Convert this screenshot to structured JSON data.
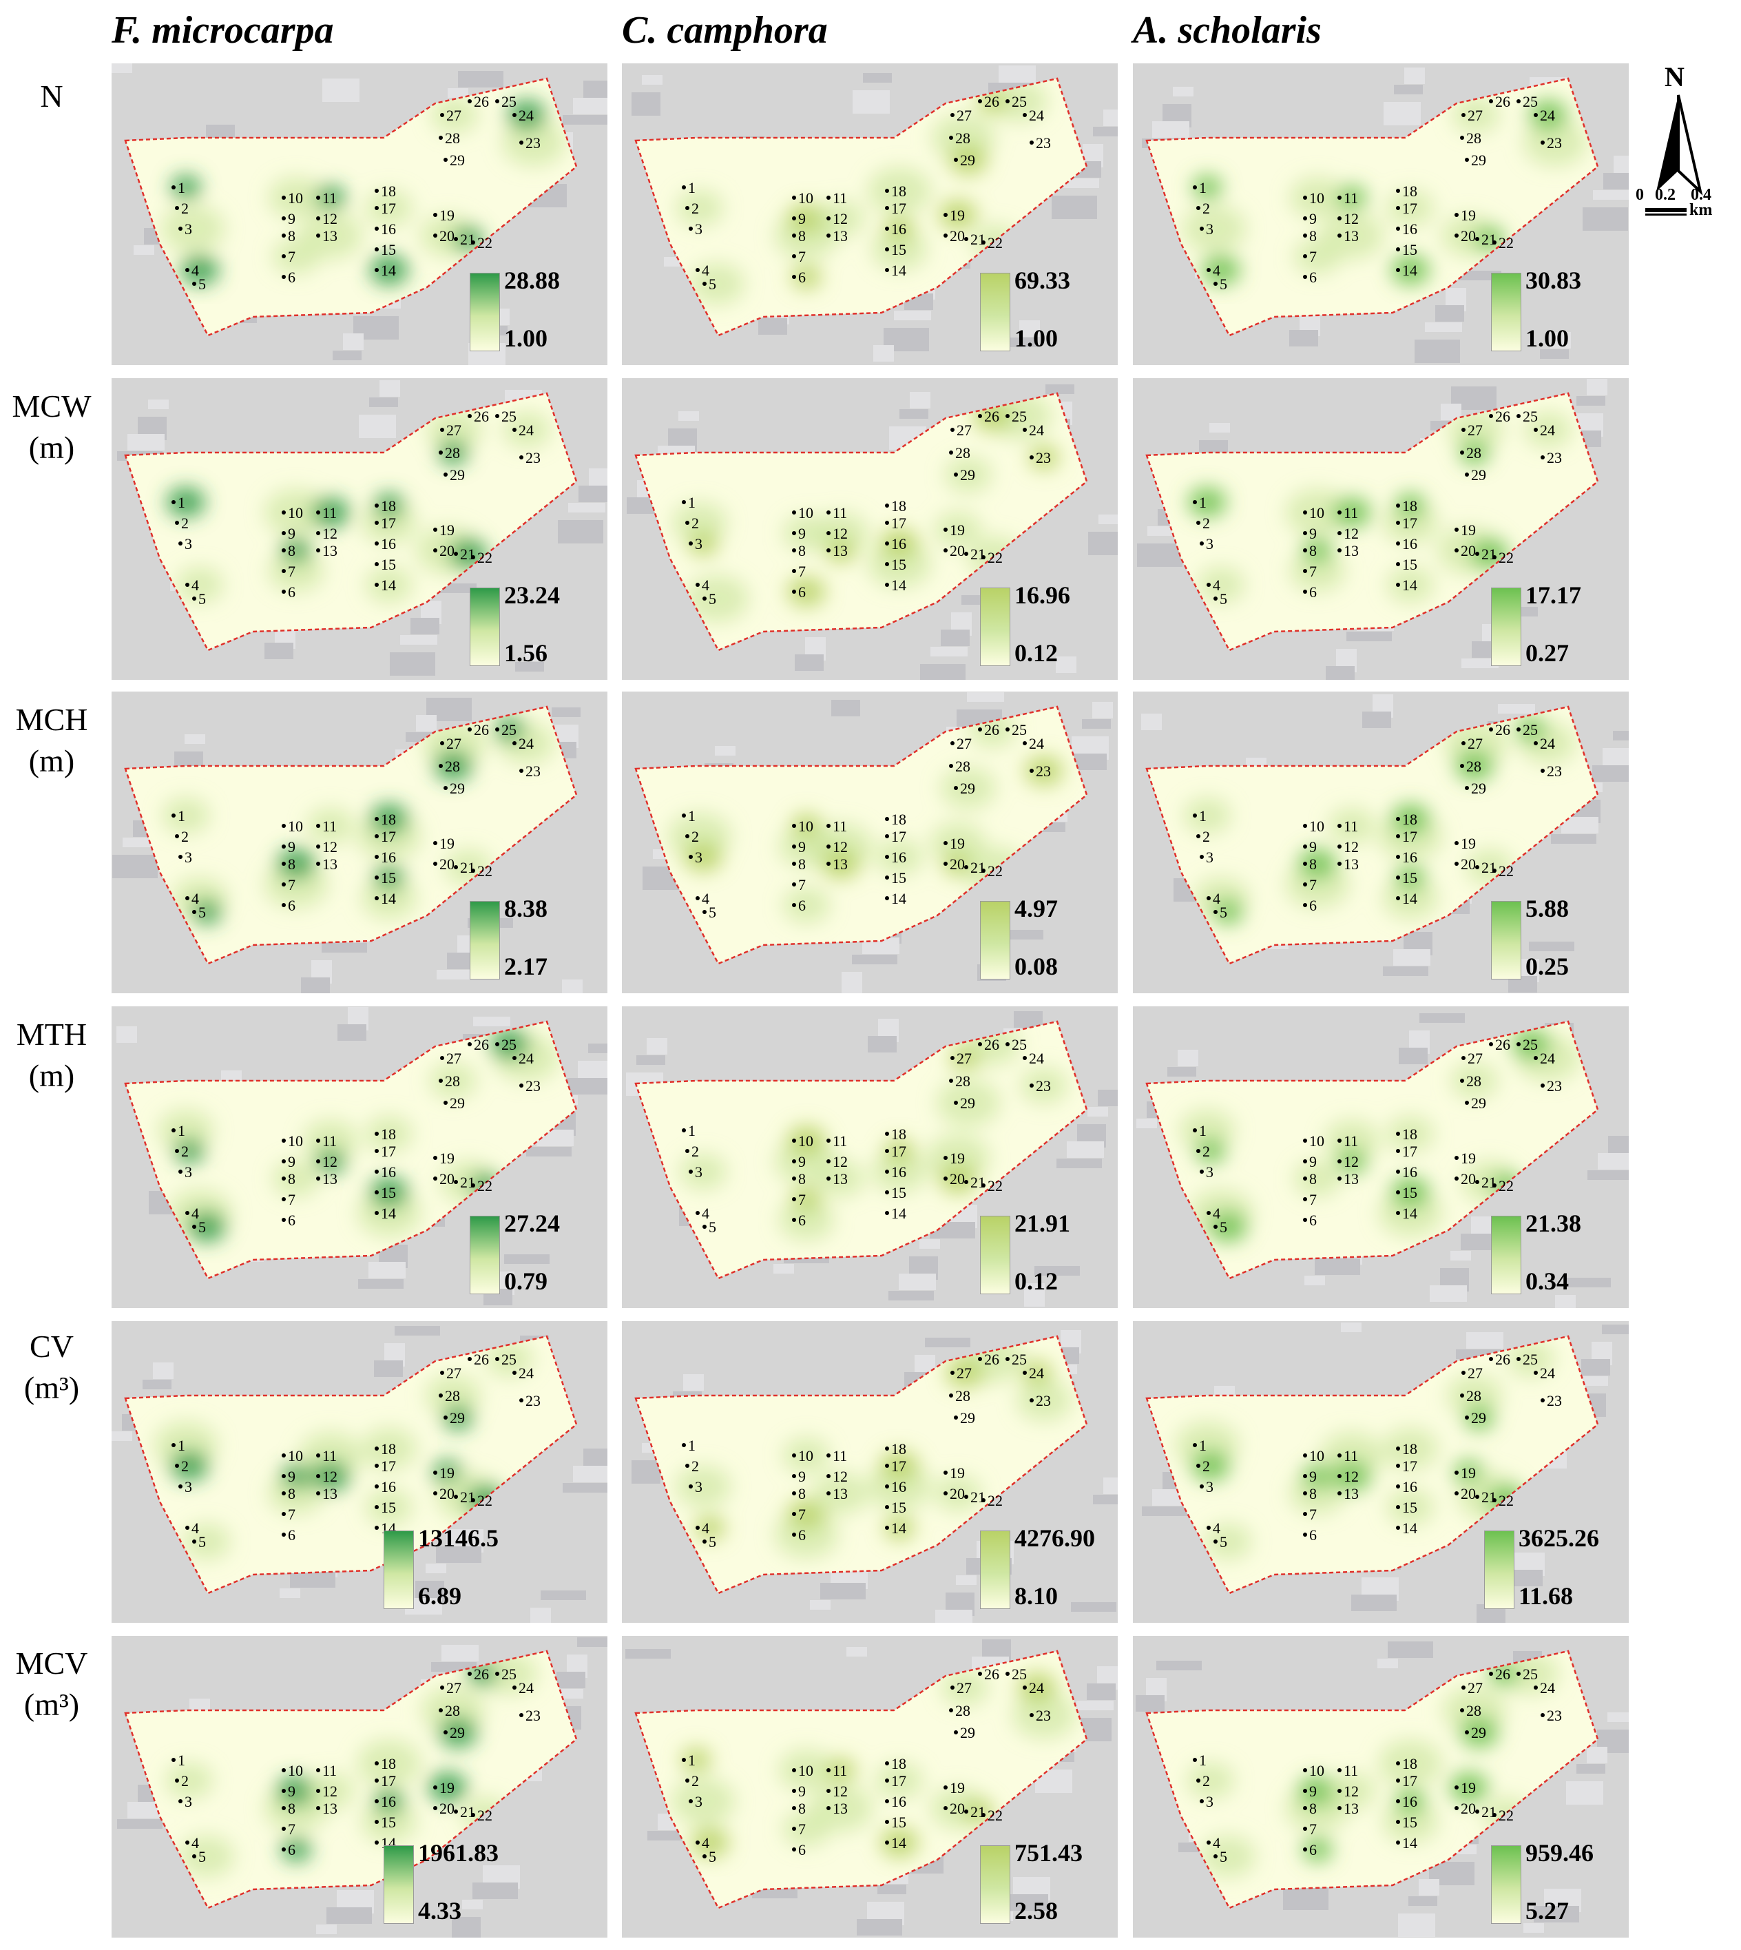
{
  "columns": [
    {
      "title": "F. microcarpa"
    },
    {
      "title": "C. camphora"
    },
    {
      "title": "A. scholaris"
    }
  ],
  "rows": [
    {
      "label": "N",
      "unit": ""
    },
    {
      "label": "MCW",
      "unit": "(m)"
    },
    {
      "label": "MCH",
      "unit": "(m)"
    },
    {
      "label": "MTH",
      "unit": "(m)"
    },
    {
      "label": "CV",
      "unit": "(m³)"
    },
    {
      "label": "MCV",
      "unit": "(m³)"
    }
  ],
  "legends": [
    [
      {
        "max": "28.88",
        "min": "1.00"
      },
      {
        "max": "69.33",
        "min": "1.00"
      },
      {
        "max": "30.83",
        "min": "1.00"
      }
    ],
    [
      {
        "max": "23.24",
        "min": "1.56"
      },
      {
        "max": "16.96",
        "min": "0.12"
      },
      {
        "max": "17.17",
        "min": "0.27"
      }
    ],
    [
      {
        "max": "8.38",
        "min": "2.17"
      },
      {
        "max": "4.97",
        "min": "0.08"
      },
      {
        "max": "5.88",
        "min": "0.25"
      }
    ],
    [
      {
        "max": "27.24",
        "min": "0.79"
      },
      {
        "max": "21.91",
        "min": "0.12"
      },
      {
        "max": "21.38",
        "min": "0.34"
      }
    ],
    [
      {
        "max": "13146.5",
        "min": "6.89"
      },
      {
        "max": "4276.90",
        "min": "8.10"
      },
      {
        "max": "3625.26",
        "min": "11.68"
      }
    ],
    [
      {
        "max": "1961.83",
        "min": "4.33"
      },
      {
        "max": "751.43",
        "min": "2.58"
      },
      {
        "max": "959.46",
        "min": "5.27"
      }
    ]
  ],
  "sample_points": [
    "1",
    "2",
    "3",
    "4",
    "5",
    "6",
    "7",
    "8",
    "9",
    "10",
    "11",
    "12",
    "13",
    "14",
    "15",
    "16",
    "17",
    "18",
    "19",
    "20",
    "21",
    "22",
    "23",
    "24",
    "25",
    "26",
    "27",
    "28",
    "29"
  ],
  "north_arrow": {
    "letter": "N"
  },
  "scale_bar": {
    "ticks": [
      "0",
      "0.2",
      "0.4"
    ],
    "unit": "km"
  },
  "colors": {
    "low": "#fbfde0",
    "mid": "#cfe7a3",
    "high_microcarpa": "#2e9a48",
    "high_camphora": "#b9d267",
    "high_scholaris": "#6cc150",
    "boundary": "#e0302a",
    "basemap": "#d5d5d5"
  }
}
